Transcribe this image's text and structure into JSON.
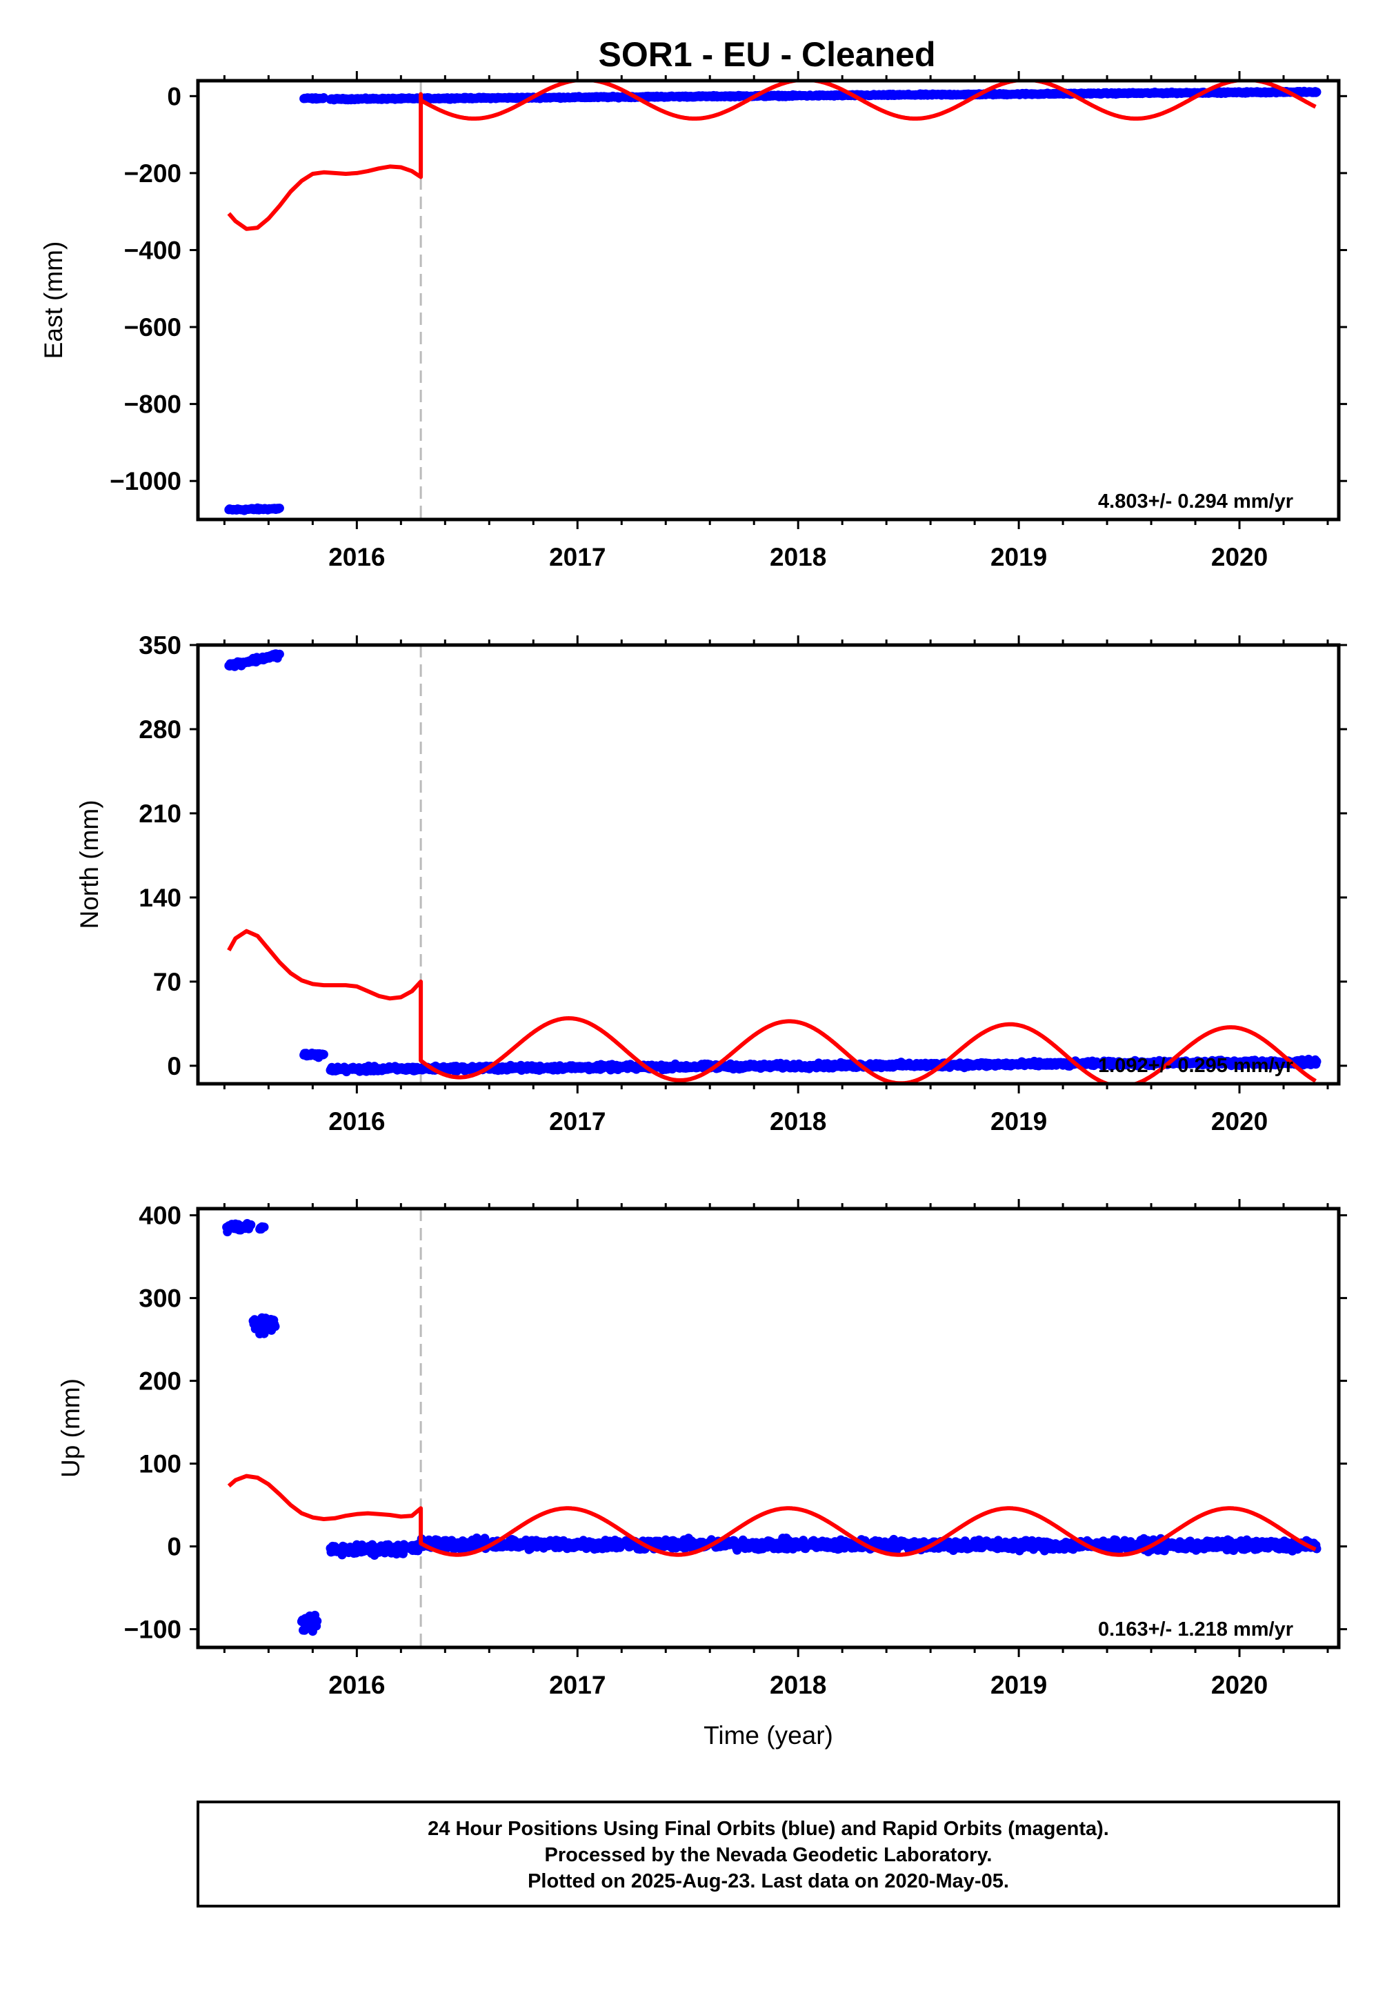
{
  "title": "SOR1  - EU - Cleaned",
  "colors": {
    "final_orbits": "#0000ff",
    "model_fit": "#ff0000",
    "offset_line": "#bbbbbb",
    "frame": "#000000"
  },
  "chart_data": [
    {
      "type": "scatter",
      "name": "east",
      "ylabel": "East (mm)",
      "xlabel": "",
      "xlim": [
        2015.28,
        2020.45
      ],
      "ylim": [
        -1100,
        40
      ],
      "yticks": [
        0,
        -200,
        -400,
        -600,
        -800,
        -1000
      ],
      "ytick_labels": [
        "0",
        "−200",
        "−400",
        "−600",
        "−800",
        "−1000"
      ],
      "xticks": [
        2016,
        2017,
        2018,
        2019,
        2020
      ],
      "xtick_labels": [
        "2016",
        "2017",
        "2018",
        "2019",
        "2020"
      ],
      "offset_epoch": 2016.29,
      "rate_text": "4.803+/- 0.294 mm/yr",
      "point_segments": [
        {
          "x": [
            2015.42,
            2015.65
          ],
          "y": [
            -1075,
            -1072
          ],
          "noise": 3
        },
        {
          "x": [
            2015.76,
            2015.85
          ],
          "y": [
            -6,
            -6
          ],
          "noise": 2
        },
        {
          "x": [
            2015.88,
            2020.35
          ],
          "y": [
            -8,
            11
          ],
          "noise": 2
        }
      ],
      "fit": {
        "pre": {
          "x": [
            2015.42,
            2015.45,
            2015.5,
            2015.55,
            2015.6,
            2015.65,
            2015.7,
            2015.75,
            2015.8,
            2015.85,
            2015.9,
            2015.95,
            2016.0,
            2016.05,
            2016.1,
            2016.15,
            2016.2,
            2016.25,
            2016.29
          ],
          "y": [
            -305,
            -325,
            -345,
            -342,
            -318,
            -285,
            -248,
            -220,
            -202,
            -198,
            -200,
            -202,
            -200,
            -195,
            -188,
            -183,
            -185,
            -195,
            -210
          ]
        },
        "post": {
          "x_start": 2016.29,
          "x_end": 2020.35,
          "offset": 2,
          "trend": 0,
          "cos_amp": 10,
          "sin_amp": 52,
          "jump_top": 5
        }
      }
    },
    {
      "type": "scatter",
      "name": "north",
      "ylabel": "North (mm)",
      "xlabel": "",
      "xlim": [
        2015.28,
        2020.45
      ],
      "ylim": [
        -15,
        350
      ],
      "yticks": [
        350,
        280,
        210,
        140,
        70,
        0
      ],
      "ytick_labels": [
        "350",
        "280",
        "210",
        "140",
        "70",
        "0"
      ],
      "xticks": [
        2016,
        2017,
        2018,
        2019,
        2020
      ],
      "xtick_labels": [
        "2016",
        "2017",
        "2018",
        "2019",
        "2020"
      ],
      "offset_epoch": 2016.29,
      "rate_text": "1.092+/- 0.295 mm/yr",
      "point_segments": [
        {
          "x": [
            2015.42,
            2015.65
          ],
          "y": [
            333,
            342
          ],
          "noise": 2
        },
        {
          "x": [
            2015.76,
            2015.85
          ],
          "y": [
            9,
            9
          ],
          "noise": 2
        },
        {
          "x": [
            2015.88,
            2020.35
          ],
          "y": [
            -3,
            3
          ],
          "noise": 2
        }
      ],
      "fit": {
        "pre": {
          "x": [
            2015.42,
            2015.45,
            2015.5,
            2015.55,
            2015.6,
            2015.65,
            2015.7,
            2015.75,
            2015.8,
            2015.85,
            2015.9,
            2015.95,
            2016.0,
            2016.05,
            2016.1,
            2016.15,
            2016.2,
            2016.25,
            2016.29
          ],
          "y": [
            96,
            106,
            112,
            108,
            97,
            86,
            77,
            71,
            68,
            67,
            67,
            67,
            66,
            62,
            58,
            56,
            57,
            62,
            70
          ]
        },
        "post": {
          "x_start": 2016.29,
          "x_end": 2020.35,
          "offset": 10,
          "trend": -2.5,
          "cos_amp": -6,
          "sin_amp": 23,
          "jump_top": 70
        }
      }
    },
    {
      "type": "scatter",
      "name": "up",
      "ylabel": "Up (mm)",
      "xlabel": "Time (year)",
      "xlim": [
        2015.28,
        2020.45
      ],
      "ylim": [
        -122,
        408
      ],
      "yticks": [
        400,
        300,
        200,
        100,
        0,
        -100
      ],
      "ytick_labels": [
        "400",
        "300",
        "200",
        "100",
        "0",
        "−100"
      ],
      "xticks": [
        2016,
        2017,
        2018,
        2019,
        2020
      ],
      "xtick_labels": [
        "2016",
        "2017",
        "2018",
        "2019",
        "2020"
      ],
      "offset_epoch": 2016.29,
      "rate_text": "0.163+/- 1.218 mm/yr",
      "point_segments": [
        {
          "x": [
            2015.41,
            2015.52
          ],
          "y": [
            386,
            386
          ],
          "noise": 6
        },
        {
          "x": [
            2015.56,
            2015.58
          ],
          "y": [
            385,
            385
          ],
          "noise": 2
        },
        {
          "x": [
            2015.53,
            2015.63
          ],
          "y": [
            268,
            268
          ],
          "noise": 10
        },
        {
          "x": [
            2015.75,
            2015.82
          ],
          "y": [
            -92,
            -92
          ],
          "noise": 10
        },
        {
          "x": [
            2015.88,
            2016.28
          ],
          "y": [
            -5,
            -2
          ],
          "noise": 6
        },
        {
          "x": [
            2016.29,
            2020.35
          ],
          "y": [
            3,
            1
          ],
          "noise": 6
        }
      ],
      "fit": {
        "pre": {
          "x": [
            2015.42,
            2015.45,
            2015.5,
            2015.55,
            2015.6,
            2015.65,
            2015.7,
            2015.75,
            2015.8,
            2015.85,
            2015.9,
            2015.95,
            2016.0,
            2016.05,
            2016.1,
            2016.15,
            2016.2,
            2016.25,
            2016.29
          ],
          "y": [
            73,
            80,
            85,
            83,
            75,
            63,
            50,
            40,
            35,
            33,
            34,
            37,
            39,
            40,
            39,
            38,
            36,
            37,
            46
          ]
        },
        "post": {
          "x_start": 2016.29,
          "x_end": 2020.35,
          "offset": 10,
          "trend": 0,
          "cos_amp": -8,
          "sin_amp": 25,
          "jump_top": 46
        }
      }
    }
  ],
  "footer": {
    "line1": "24 Hour Positions Using Final Orbits (blue) and Rapid Orbits (magenta).",
    "line2": "Processed by the Nevada Geodetic Laboratory.",
    "line3": "Plotted on 2025-Aug-23. Last data on 2020-May-05."
  }
}
